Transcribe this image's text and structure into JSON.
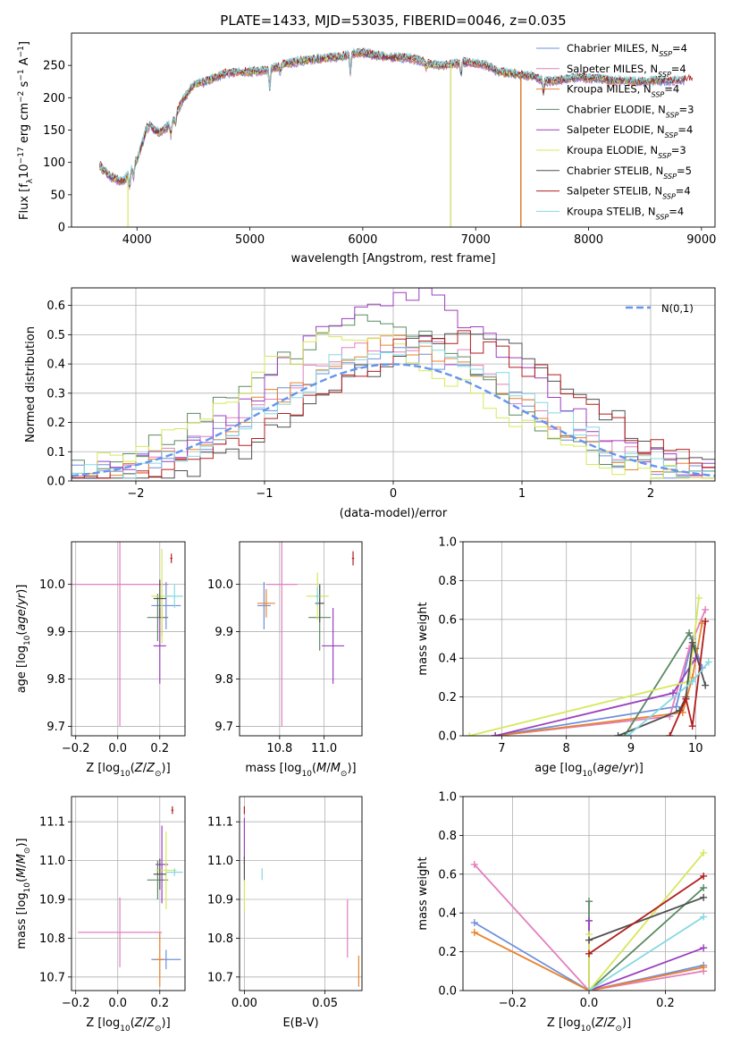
{
  "title": "PLATE=1433, MJD=53035, FIBERID=0046, z=0.035",
  "colors": {
    "Chabrier MILES": "#6f8fdc",
    "Salpeter MILES": "#e27fbf",
    "Kroupa MILES": "#e8832c",
    "Chabrier ELODIE": "#5b8a62",
    "Salpeter ELODIE": "#9b3fbf",
    "Kroupa ELODIE": "#d6e85c",
    "Chabrier STELIB": "#505050",
    "Salpeter STELIB": "#b01e1e",
    "Kroupa STELIB": "#86d8e2",
    "normal": "#6495ed"
  },
  "chart_data": [
    {
      "id": "spectrum",
      "type": "line",
      "title": "PLATE=1433, MJD=53035, FIBERID=0046, z=0.035",
      "xlabel": "wavelength [Angstrom, rest frame]",
      "ylabel": "Flux [f_λ 10^-17 erg cm^-2 s^-1 A^-1]",
      "xlim": [
        3420,
        9120
      ],
      "ylim": [
        0,
        300
      ],
      "xticks": [
        4000,
        5000,
        6000,
        7000,
        8000,
        9000
      ],
      "yticks": [
        0,
        50,
        100,
        150,
        200,
        250
      ],
      "grid": false,
      "legend_position": "right",
      "legend": [
        "Chabrier MILES, N_SSP=4",
        "Salpeter MILES, N_SSP=4",
        "Kroupa MILES, N_SSP=4",
        "Chabrier ELODIE, N_SSP=3",
        "Salpeter ELODIE, N_SSP=4",
        "Kroupa ELODIE, N_SSP=3",
        "Chabrier STELIB, N_SSP=5",
        "Salpeter STELIB, N_SSP=4",
        "Kroupa STELIB, N_SSP=4"
      ],
      "continuum": {
        "x": [
          3670,
          3750,
          3850,
          3900,
          3950,
          4000,
          4050,
          4100,
          4150,
          4200,
          4300,
          4350,
          4400,
          4500,
          4600,
          4700,
          4800,
          4900,
          5000,
          5100,
          5200,
          5300,
          5400,
          5500,
          5600,
          5700,
          5800,
          5900,
          6000,
          6100,
          6200,
          6300,
          6400,
          6500,
          6600,
          6700,
          6800,
          6900,
          7000,
          7100,
          7200,
          7300,
          7400,
          7500,
          7600,
          7700,
          7800,
          7900,
          8000,
          8100,
          8200,
          8300,
          8400,
          8500,
          8600,
          8700,
          8800,
          8900,
          9000,
          9100
        ],
        "y": [
          95,
          80,
          70,
          75,
          88,
          105,
          130,
          165,
          150,
          145,
          160,
          175,
          195,
          220,
          225,
          232,
          238,
          240,
          240,
          242,
          245,
          252,
          255,
          258,
          260,
          262,
          263,
          268,
          270,
          266,
          263,
          262,
          262,
          258,
          252,
          250,
          252,
          255,
          253,
          250,
          240,
          238,
          235,
          234,
          226,
          226,
          229,
          232,
          230,
          230,
          226,
          227,
          225,
          225,
          227,
          226,
          226,
          229,
          232,
          231
        ]
      },
      "dropouts": [
        {
          "model": "Kroupa ELODIE",
          "x": 3920,
          "to": 0
        },
        {
          "model": "Salpeter ELODIE",
          "x": 6780,
          "to": 0
        },
        {
          "model": "Kroupa ELODIE",
          "x": 6780,
          "to": 0
        },
        {
          "model": "Salpeter STELIB",
          "x": 7400,
          "to": 0
        },
        {
          "model": "Kroupa MILES",
          "x": 7400,
          "to": 0
        }
      ]
    },
    {
      "id": "residuals",
      "type": "line",
      "title": "",
      "xlabel": "(data-model)/error",
      "ylabel": "Normed distribution",
      "xlim": [
        -2.5,
        2.5
      ],
      "ylim": [
        0,
        0.66
      ],
      "xticks": [
        -2,
        -1,
        0,
        1,
        2
      ],
      "yticks": [
        0.0,
        0.1,
        0.2,
        0.3,
        0.4,
        0.5,
        0.6
      ],
      "grid": true,
      "legend_position": "top-right",
      "legend": [
        "N(0,1)"
      ],
      "normal_curve": {
        "mean": 0,
        "sigma": 1
      },
      "histogram": {
        "bin_width": 0.1,
        "x_start": -2.5,
        "x_end": 2.5,
        "peaks": [
          {
            "model": "Chabrier MILES",
            "peak": 0.44,
            "center": 0.0
          },
          {
            "model": "Salpeter MILES",
            "peak": 0.47,
            "center": 0.05
          },
          {
            "model": "Kroupa MILES",
            "peak": 0.46,
            "center": 0.0
          },
          {
            "model": "Chabrier ELODIE",
            "peak": 0.53,
            "center": -0.2
          },
          {
            "model": "Salpeter ELODIE",
            "peak": 0.63,
            "center": 0.1
          },
          {
            "model": "Kroupa ELODIE",
            "peak": 0.49,
            "center": -0.3
          },
          {
            "model": "Chabrier STELIB",
            "peak": 0.5,
            "center": 0.5
          },
          {
            "model": "Salpeter STELIB",
            "peak": 0.49,
            "center": 0.4
          },
          {
            "model": "Kroupa STELIB",
            "peak": 0.47,
            "center": 0.1
          }
        ]
      }
    },
    {
      "id": "age-vs-Z",
      "type": "scatter",
      "title": "",
      "xlabel": "Z [log10(Z/Z_sun)]",
      "ylabel": "age [log10(age/yr)]",
      "xlim": [
        -0.22,
        0.32
      ],
      "ylim": [
        9.68,
        10.09
      ],
      "xticks": [
        -0.2,
        0.0,
        0.2
      ],
      "yticks": [
        9.7,
        9.8,
        9.9,
        10.0
      ],
      "grid": true,
      "points": [
        {
          "model": "Salpeter MILES",
          "x": 0.01,
          "y": 10.0,
          "xerr": 0.23,
          "yerr": 0.3
        },
        {
          "model": "Chabrier MILES",
          "x": 0.23,
          "y": 9.955,
          "xerr": 0.07,
          "yerr": 0.05
        },
        {
          "model": "Kroupa MILES",
          "x": 0.21,
          "y": 9.93,
          "xerr": 0.02,
          "yerr": 0.04
        },
        {
          "model": "Chabrier ELODIE",
          "x": 0.19,
          "y": 9.93,
          "xerr": 0.05,
          "yerr": 0.05
        },
        {
          "model": "Salpeter ELODIE",
          "x": 0.2,
          "y": 9.87,
          "xerr": 0.03,
          "yerr": 0.08
        },
        {
          "model": "Kroupa ELODIE",
          "x": 0.21,
          "y": 9.975,
          "xerr": 0.05,
          "yerr": 0.1
        },
        {
          "model": "Chabrier STELIB",
          "x": 0.2,
          "y": 9.97,
          "xerr": 0.03,
          "yerr": 0.04
        },
        {
          "model": "Salpeter STELIB",
          "x": 0.255,
          "y": 10.055,
          "xerr": 0.005,
          "yerr": 0.01
        },
        {
          "model": "Kroupa STELIB",
          "x": 0.27,
          "y": 9.975,
          "xerr": 0.04,
          "yerr": 0.025
        }
      ]
    },
    {
      "id": "age-vs-mass",
      "type": "scatter",
      "title": "",
      "xlabel": "mass [log10(M/M_sun)]",
      "ylabel": "",
      "xlim": [
        10.62,
        11.17
      ],
      "ylim": [
        9.68,
        10.09
      ],
      "xticks": [
        10.8,
        11.0
      ],
      "yticks": [
        9.7,
        9.8,
        9.9,
        10.0
      ],
      "grid": true,
      "points": [
        {
          "model": "Salpeter MILES",
          "x": 10.81,
          "y": 10.0,
          "xerr": 0.07,
          "yerr": 0.3
        },
        {
          "model": "Chabrier MILES",
          "x": 10.73,
          "y": 9.955,
          "xerr": 0.03,
          "yerr": 0.05
        },
        {
          "model": "Kroupa MILES",
          "x": 10.74,
          "y": 9.96,
          "xerr": 0.04,
          "yerr": 0.03
        },
        {
          "model": "Chabrier ELODIE",
          "x": 10.98,
          "y": 9.93,
          "xerr": 0.05,
          "yerr": 0.07
        },
        {
          "model": "Salpeter ELODIE",
          "x": 11.04,
          "y": 9.87,
          "xerr": 0.05,
          "yerr": 0.08
        },
        {
          "model": "Kroupa ELODIE",
          "x": 10.97,
          "y": 9.975,
          "xerr": 0.05,
          "yerr": 0.05
        },
        {
          "model": "Chabrier STELIB",
          "x": 10.98,
          "y": 9.96,
          "xerr": 0.02,
          "yerr": 0.04
        },
        {
          "model": "Salpeter STELIB",
          "x": 11.13,
          "y": 10.055,
          "xerr": 0.005,
          "yerr": 0.015
        },
        {
          "model": "Kroupa STELIB",
          "x": 10.97,
          "y": 9.975,
          "xerr": 0.01,
          "yerr": 0.02
        }
      ]
    },
    {
      "id": "mass-weight-vs-age",
      "type": "line",
      "title": "",
      "xlabel": "age [log10(age/yr)]",
      "ylabel": "mass weight",
      "xlim": [
        6.4,
        10.3
      ],
      "ylim": [
        0,
        1.0
      ],
      "xticks": [
        7,
        8,
        9,
        10
      ],
      "yticks": [
        0.0,
        0.2,
        0.4,
        0.6,
        0.8,
        1.0
      ],
      "grid": true,
      "series": [
        {
          "model": "Chabrier MILES",
          "x": [
            6.9,
            9.7,
            9.95,
            10.1
          ],
          "y": [
            0.0,
            0.15,
            0.5,
            0.35
          ]
        },
        {
          "model": "Salpeter MILES",
          "x": [
            6.9,
            9.6,
            9.9,
            10.15
          ],
          "y": [
            0.0,
            0.1,
            0.45,
            0.65
          ]
        },
        {
          "model": "Kroupa MILES",
          "x": [
            6.9,
            9.8,
            9.95,
            10.1
          ],
          "y": [
            0.0,
            0.12,
            0.3,
            0.58
          ]
        },
        {
          "model": "Chabrier ELODIE",
          "x": [
            8.9,
            9.9,
            10.0
          ],
          "y": [
            0.0,
            0.53,
            0.45
          ]
        },
        {
          "model": "Salpeter ELODIE",
          "x": [
            6.9,
            9.65,
            10.0
          ],
          "y": [
            0.0,
            0.22,
            0.4
          ]
        },
        {
          "model": "Kroupa ELODIE",
          "x": [
            6.5,
            9.9,
            10.05
          ],
          "y": [
            0.0,
            0.28,
            0.71
          ]
        },
        {
          "model": "Chabrier STELIB",
          "x": [
            8.8,
            9.75,
            9.85,
            9.95,
            10.15
          ],
          "y": [
            0.0,
            0.13,
            0.2,
            0.48,
            0.26
          ]
        },
        {
          "model": "Salpeter STELIB",
          "x": [
            9.6,
            9.85,
            9.95,
            10.15
          ],
          "y": [
            0.0,
            0.19,
            0.05,
            0.59
          ]
        },
        {
          "model": "Kroupa STELIB",
          "x": [
            8.95,
            9.95,
            10.2
          ],
          "y": [
            0.0,
            0.28,
            0.38
          ]
        }
      ]
    },
    {
      "id": "mass-vs-Z",
      "type": "scatter",
      "title": "",
      "xlabel": "Z [log10(Z/Z_sun)]",
      "ylabel": "mass [log10(M/M_sun)]",
      "xlim": [
        -0.22,
        0.32
      ],
      "ylim": [
        10.665,
        11.165
      ],
      "xticks": [
        -0.2,
        0.0,
        0.2
      ],
      "yticks": [
        10.7,
        10.8,
        10.9,
        11.0,
        11.1
      ],
      "grid": true,
      "points": [
        {
          "model": "Salpeter MILES",
          "x": 0.01,
          "y": 10.815,
          "xerr": 0.2,
          "yerr": 0.09
        },
        {
          "model": "Chabrier MILES",
          "x": 0.23,
          "y": 10.745,
          "xerr": 0.07,
          "yerr": 0.025
        },
        {
          "model": "Kroupa MILES",
          "x": 0.2,
          "y": 10.745,
          "xerr": 0.02,
          "yerr": 0.07
        },
        {
          "model": "Chabrier ELODIE",
          "x": 0.19,
          "y": 10.95,
          "xerr": 0.05,
          "yerr": 0.05
        },
        {
          "model": "Salpeter ELODIE",
          "x": 0.21,
          "y": 10.99,
          "xerr": 0.03,
          "yerr": 0.1
        },
        {
          "model": "Kroupa ELODIE",
          "x": 0.23,
          "y": 10.975,
          "xerr": 0.05,
          "yerr": 0.1
        },
        {
          "model": "Chabrier STELIB",
          "x": 0.2,
          "y": 10.965,
          "xerr": 0.03,
          "yerr": 0.04
        },
        {
          "model": "Salpeter STELIB",
          "x": 0.26,
          "y": 11.13,
          "xerr": 0.005,
          "yerr": 0.01
        },
        {
          "model": "Kroupa STELIB",
          "x": 0.27,
          "y": 10.97,
          "xerr": 0.04,
          "yerr": 0.01
        }
      ]
    },
    {
      "id": "mass-vs-EBV",
      "type": "scatter",
      "title": "",
      "xlabel": "E(B-V)",
      "ylabel": "",
      "xlim": [
        -0.003,
        0.073
      ],
      "ylim": [
        10.665,
        11.165
      ],
      "xticks": [
        0.0,
        0.05
      ],
      "yticks": [
        10.7,
        10.8,
        10.9,
        11.0,
        11.1
      ],
      "grid": true,
      "points": [
        {
          "model": "Salpeter MILES",
          "x": 0.064,
          "y": 10.825,
          "xerr": 0.0,
          "yerr": 0.075
        },
        {
          "model": "Kroupa MILES",
          "x": 0.071,
          "y": 10.715,
          "xerr": 0.0,
          "yerr": 0.04
        },
        {
          "model": "Kroupa ELODIE",
          "x": 0.0,
          "y": 10.91,
          "xerr": 0.0,
          "yerr": 0.04
        },
        {
          "model": "Salpeter ELODIE",
          "x": 0.0,
          "y": 11.05,
          "xerr": 0.0,
          "yerr": 0.06
        },
        {
          "model": "Chabrier STELIB",
          "x": 0.0,
          "y": 10.98,
          "xerr": 0.0,
          "yerr": 0.03
        },
        {
          "model": "Salpeter STELIB",
          "x": 0.0,
          "y": 11.13,
          "xerr": 0.0,
          "yerr": 0.01
        },
        {
          "model": "Kroupa STELIB",
          "x": 0.011,
          "y": 10.965,
          "xerr": 0.0,
          "yerr": 0.015
        }
      ]
    },
    {
      "id": "mass-weight-vs-Z",
      "type": "line",
      "title": "",
      "xlabel": "Z [log10(Z/Z_sun)]",
      "ylabel": "mass weight",
      "xlim": [
        -0.33,
        0.33
      ],
      "ylim": [
        0,
        1.0
      ],
      "xticks": [
        -0.2,
        0.0,
        0.2
      ],
      "yticks": [
        0.0,
        0.2,
        0.4,
        0.6,
        0.8,
        1.0
      ],
      "grid": true,
      "series": [
        {
          "model": "Chabrier MILES",
          "x": [
            -0.3,
            0.0,
            0.3
          ],
          "y": [
            0.35,
            0.0,
            0.13
          ]
        },
        {
          "model": "Salpeter MILES",
          "x": [
            -0.3,
            0.0,
            0.3
          ],
          "y": [
            0.65,
            0.0,
            0.1
          ]
        },
        {
          "model": "Kroupa MILES",
          "x": [
            -0.3,
            0.0,
            0.3
          ],
          "y": [
            0.3,
            0.0,
            0.12
          ]
        },
        {
          "model": "Chabrier ELODIE",
          "x": [
            0.0,
            0.0,
            0.3
          ],
          "y": [
            0.46,
            0.0,
            0.53
          ]
        },
        {
          "model": "Salpeter ELODIE",
          "x": [
            0.0,
            0.0,
            0.3
          ],
          "y": [
            0.36,
            0.0,
            0.22
          ]
        },
        {
          "model": "Kroupa ELODIE",
          "x": [
            0.0,
            0.0,
            0.3
          ],
          "y": [
            0.29,
            0.0,
            0.71
          ]
        },
        {
          "model": "Chabrier STELIB",
          "x": [
            0.0,
            0.3
          ],
          "y": [
            0.26,
            0.48
          ]
        },
        {
          "model": "Salpeter STELIB",
          "x": [
            0.0,
            0.3
          ],
          "y": [
            0.19,
            0.59
          ]
        },
        {
          "model": "Kroupa STELIB",
          "x": [
            0.0,
            0.3
          ],
          "y": [
            0.0,
            0.38
          ]
        }
      ]
    }
  ]
}
